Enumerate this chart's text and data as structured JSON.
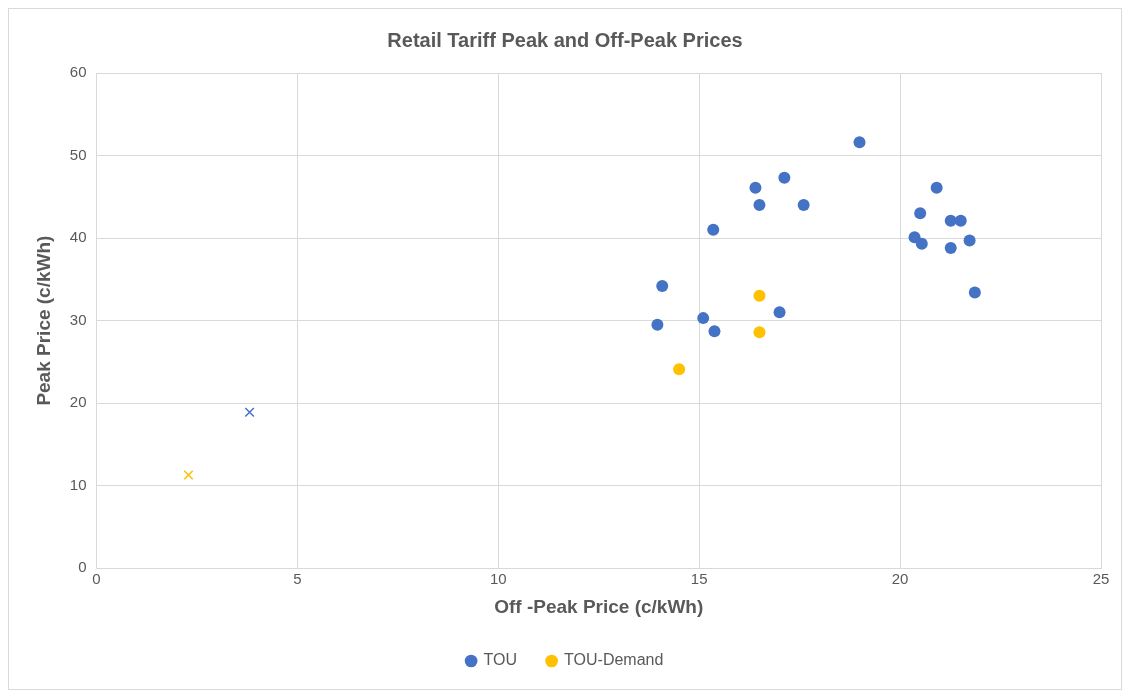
{
  "chart_data": {
    "type": "scatter",
    "title": "Retail Tariff Peak and Off-Peak Prices",
    "xlabel": "Off -Peak Price (c/kWh)",
    "ylabel": "Peak Price (c/kWh)",
    "xlim": [
      0,
      25
    ],
    "xticks": [
      0,
      5,
      10,
      15,
      20,
      25
    ],
    "ylim": [
      0,
      60
    ],
    "yticks": [
      0,
      10,
      20,
      30,
      40,
      50,
      60
    ],
    "grid": true,
    "legend": "bottom",
    "series": [
      {
        "name": "TOU",
        "color": "#4472c4",
        "marker": "circle",
        "x": [
          18.99,
          16.4,
          17.12,
          16.5,
          17.6,
          15.35,
          14.08,
          13.96,
          15.1,
          15.38,
          17.0,
          20.91,
          20.5,
          21.26,
          21.51,
          20.36,
          20.54,
          21.26,
          21.73,
          21.86
        ],
        "values": [
          51.6,
          46.1,
          47.3,
          44.0,
          44.0,
          41.0,
          34.2,
          29.5,
          30.3,
          28.7,
          31.0,
          46.1,
          43.0,
          42.1,
          42.1,
          40.1,
          39.3,
          38.8,
          39.7,
          33.4
        ]
      },
      {
        "name": "TOU-Demand",
        "color": "#ffc000",
        "marker": "circle",
        "x": [
          16.5,
          16.5,
          14.5
        ],
        "values": [
          33.0,
          28.6,
          24.1
        ]
      },
      {
        "color": "#4472c4",
        "marker": "cross",
        "x": [
          3.81
        ],
        "values": [
          18.9
        ]
      },
      {
        "color": "#ffc000",
        "marker": "cross",
        "x": [
          2.29
        ],
        "values": [
          11.3
        ]
      }
    ]
  }
}
